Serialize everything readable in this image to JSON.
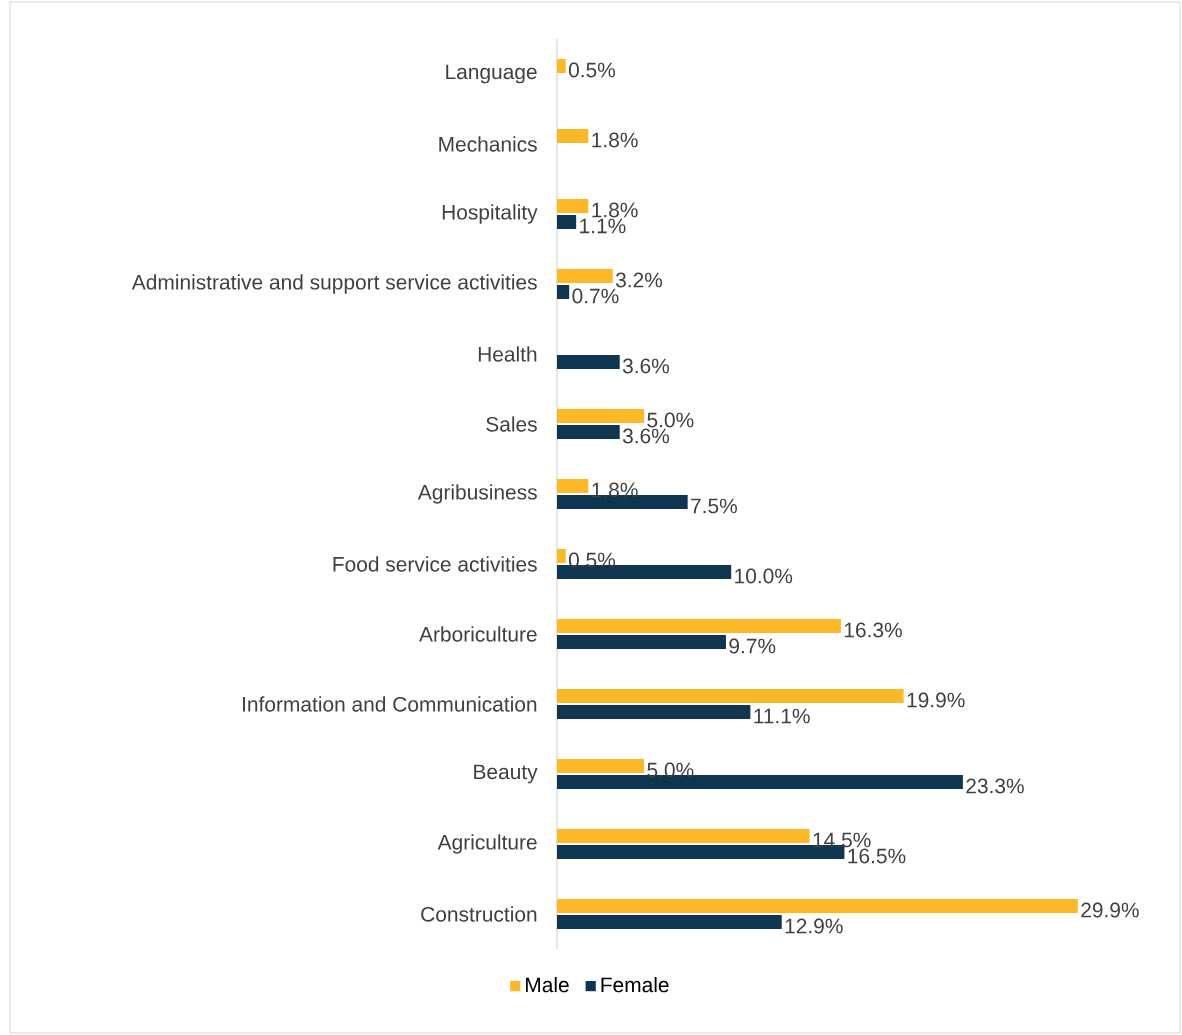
{
  "chart_data": {
    "type": "bar",
    "orientation": "horizontal",
    "categories": [
      "Language",
      "Mechanics",
      "Hospitality",
      "Administrative and support service activities",
      "Health",
      "Sales",
      "Agribusiness",
      "Food service activities",
      "Arboriculture",
      "Information and Communication",
      "Beauty",
      "Agriculture",
      "Construction"
    ],
    "series": [
      {
        "name": "Male",
        "color": "#fdb827",
        "values": [
          0.5,
          1.8,
          1.8,
          3.2,
          null,
          5.0,
          1.8,
          0.5,
          16.3,
          19.9,
          5.0,
          14.5,
          29.9
        ],
        "value_labels": [
          "0.5%",
          "1.8%",
          "1.8%",
          "3.2%",
          null,
          "5.0%",
          "1.8%",
          "0.5%",
          "16.3%",
          "19.9%",
          "5.0%",
          "14.5%",
          "29.9%"
        ]
      },
      {
        "name": "Female",
        "color": "#0f3550",
        "values": [
          null,
          null,
          1.1,
          0.7,
          3.6,
          3.6,
          7.5,
          10.0,
          9.7,
          11.1,
          23.3,
          16.5,
          12.9
        ],
        "value_labels": [
          null,
          null,
          "1.1%",
          "0.7%",
          "3.6%",
          "3.6%",
          "7.5%",
          "10.0%",
          "9.7%",
          "11.1%",
          "23.3%",
          "16.5%",
          "12.9%"
        ]
      }
    ],
    "legend": "bottom"
  }
}
